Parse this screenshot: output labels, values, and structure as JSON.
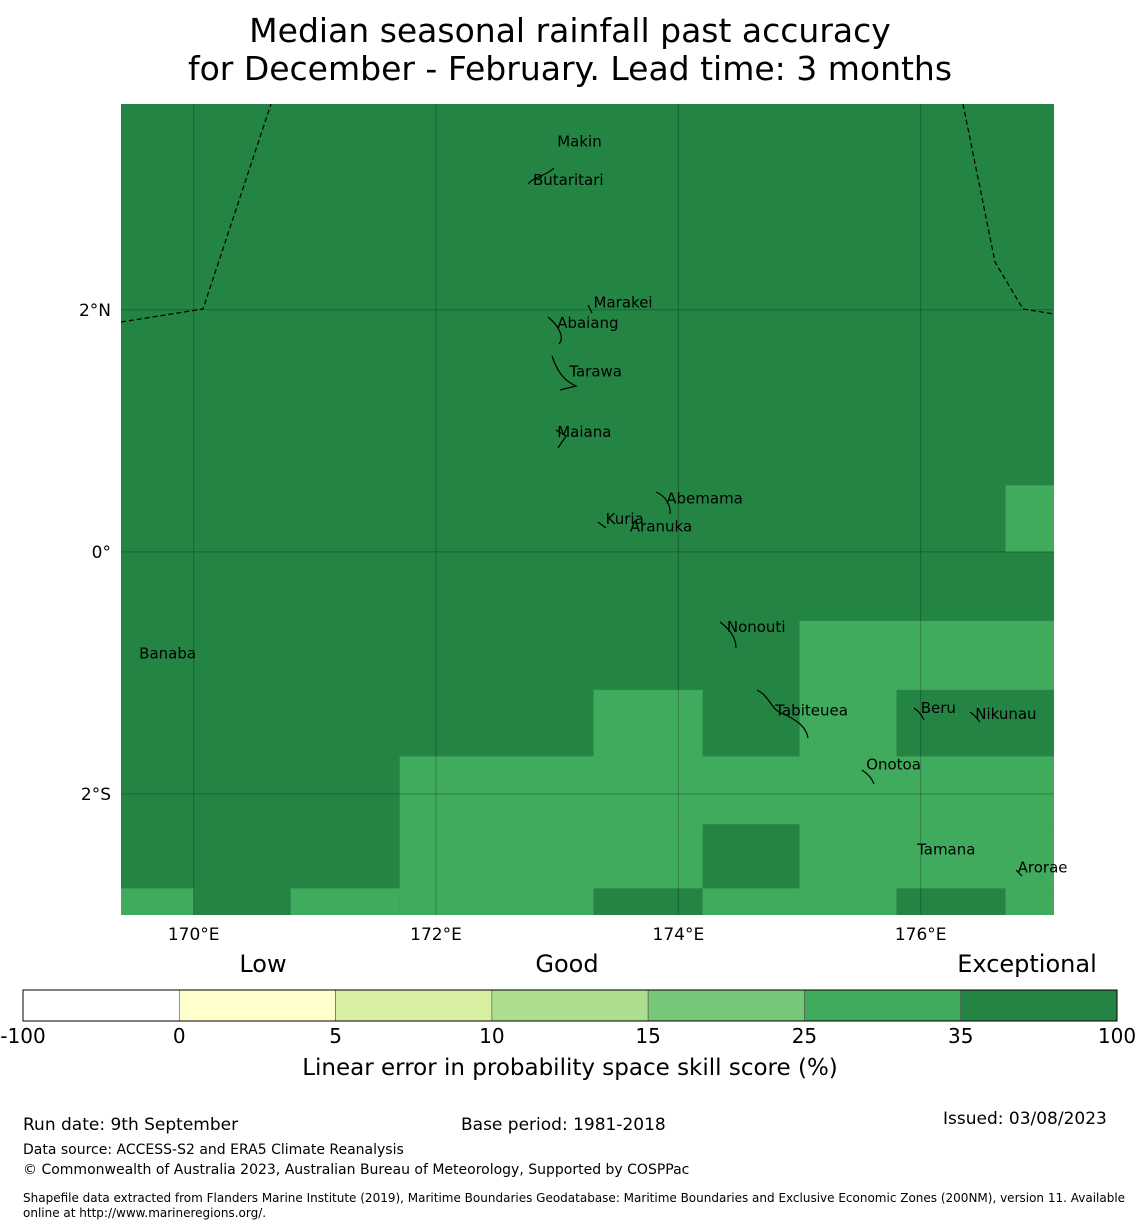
{
  "title": {
    "line1": "Median seasonal rainfall past accuracy",
    "line2": "for December - February. Lead time: 3 months"
  },
  "map": {
    "lon_range": [
      169.4,
      177.1
    ],
    "lat_range": [
      -3.0,
      3.7
    ],
    "lon_ticks": [
      {
        "value": 170,
        "label": "170°E"
      },
      {
        "value": 172,
        "label": "172°E"
      },
      {
        "value": 174,
        "label": "174°E"
      },
      {
        "value": 176,
        "label": "176°E"
      }
    ],
    "lat_ticks": [
      {
        "value": 2,
        "label": "2°N"
      },
      {
        "value": 0,
        "label": "0°"
      },
      {
        "value": -2,
        "label": "2°S"
      }
    ],
    "colors": {
      "exceptional": "#238443",
      "very_good": "#41ab5d"
    },
    "grid_cells_very_good": [
      {
        "lon": [
          176.7,
          177.1
        ],
        "lat": [
          0.0,
          0.55
        ]
      },
      {
        "lon": [
          175.0,
          177.1
        ],
        "lat": [
          -1.14,
          -0.57
        ]
      },
      {
        "lon": [
          173.3,
          174.2
        ],
        "lat": [
          -1.69,
          -1.14
        ]
      },
      {
        "lon": [
          171.7,
          175.0
        ],
        "lat": [
          -2.25,
          -1.69
        ]
      },
      {
        "lon": [
          175.0,
          175.8
        ],
        "lat": [
          -1.69,
          -1.14
        ]
      },
      {
        "lon": [
          175.0,
          177.1
        ],
        "lat": [
          -2.25,
          -1.69
        ]
      },
      {
        "lon": [
          171.7,
          174.2
        ],
        "lat": [
          -2.78,
          -2.25
        ]
      },
      {
        "lon": [
          175.0,
          177.1
        ],
        "lat": [
          -2.78,
          -2.25
        ]
      },
      {
        "lon": [
          171.7,
          173.3
        ],
        "lat": [
          -3.0,
          -2.78
        ]
      },
      {
        "lon": [
          174.2,
          175.8
        ],
        "lat": [
          -3.0,
          -2.78
        ]
      },
      {
        "lon": [
          176.7,
          177.1
        ],
        "lat": [
          -3.0,
          -2.78
        ]
      },
      {
        "lon": [
          169.4,
          170.0
        ],
        "lat": [
          -3.0,
          -2.78
        ]
      },
      {
        "lon": [
          170.8,
          171.7
        ],
        "lat": [
          -3.0,
          -2.78
        ]
      }
    ],
    "islands": [
      {
        "name": "Makin",
        "lon": 173.0,
        "lat": 3.35
      },
      {
        "name": "Butaritari",
        "lon": 172.8,
        "lat": 3.03
      },
      {
        "name": "Marakei",
        "lon": 173.3,
        "lat": 2.02
      },
      {
        "name": "Abaiang",
        "lon": 173.0,
        "lat": 1.85
      },
      {
        "name": "Tarawa",
        "lon": 173.1,
        "lat": 1.45
      },
      {
        "name": "Maiana",
        "lon": 173.0,
        "lat": 0.95
      },
      {
        "name": "Abemama",
        "lon": 173.9,
        "lat": 0.4
      },
      {
        "name": "Kuria",
        "lon": 173.4,
        "lat": 0.23
      },
      {
        "name": "Aranuka",
        "lon": 173.6,
        "lat": 0.17
      },
      {
        "name": "Nonouti",
        "lon": 174.4,
        "lat": -0.66
      },
      {
        "name": "Banaba",
        "lon": 169.55,
        "lat": -0.88
      },
      {
        "name": "Tabiteuea",
        "lon": 174.8,
        "lat": -1.35
      },
      {
        "name": "Beru",
        "lon": 176.0,
        "lat": -1.33
      },
      {
        "name": "Nikunau",
        "lon": 176.45,
        "lat": -1.38
      },
      {
        "name": "Onotoa",
        "lon": 175.55,
        "lat": -1.8
      },
      {
        "name": "Tamana",
        "lon": 175.97,
        "lat": -2.5
      },
      {
        "name": "Arorae",
        "lon": 176.8,
        "lat": -2.65
      }
    ]
  },
  "colorbar": {
    "categories": [
      {
        "label": "Low",
        "position": 0.0
      },
      {
        "label": "Good",
        "position": 0.5
      },
      {
        "label": "Exceptional",
        "position": 1.0
      }
    ],
    "bins": [
      {
        "from": -100,
        "to": 0,
        "color": "#ffffff"
      },
      {
        "from": 0,
        "to": 5,
        "color": "#ffffcc"
      },
      {
        "from": 5,
        "to": 10,
        "color": "#d9f0a3"
      },
      {
        "from": 10,
        "to": 15,
        "color": "#addd8e"
      },
      {
        "from": 15,
        "to": 25,
        "color": "#78c679"
      },
      {
        "from": 25,
        "to": 35,
        "color": "#41ab5d"
      },
      {
        "from": 35,
        "to": 100,
        "color": "#238443"
      }
    ],
    "ticks": [
      "-100",
      "0",
      "5",
      "10",
      "15",
      "25",
      "35",
      "100"
    ],
    "label": "Linear error in probability space skill score (%)"
  },
  "footer": {
    "run_date": "Run date: 9th September",
    "base_period": "Base period: 1981-2018",
    "issued": "Issued: 03/08/2023",
    "data_source": "Data source: ACCESS-S2 and ERA5 Climate Reanalysis",
    "copyright": "© Commonwealth of Australia 2023, Australian Bureau of Meteorology, Supported by COSPPac",
    "shapefile_line1": "Shapefile data extracted from Flanders Marine Institute (2019), Maritime Boundaries Geodatabase: Maritime Boundaries and Exclusive Economic Zones (200NM), version 11. Available",
    "shapefile_line2": "online at http://www.marineregions.org/."
  }
}
